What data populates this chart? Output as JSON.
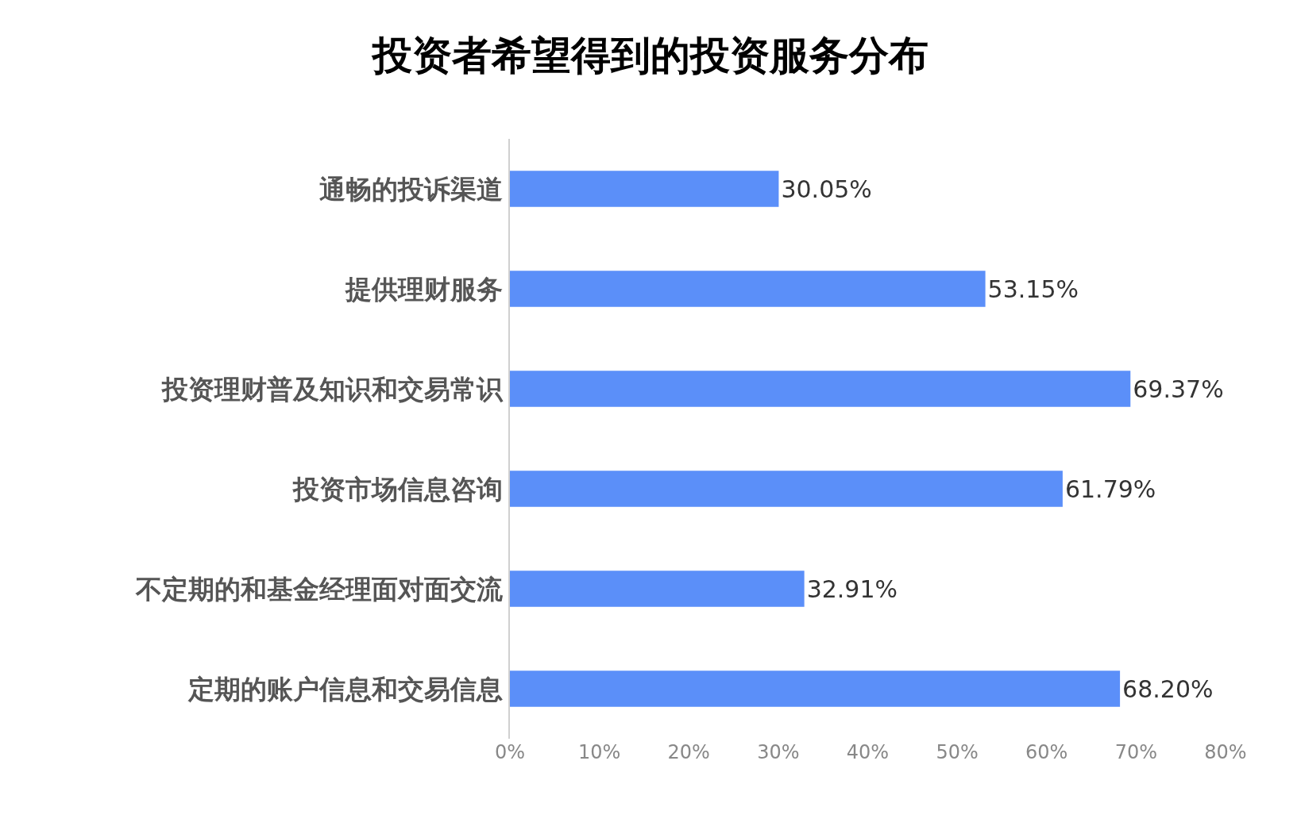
{
  "chart_data": {
    "type": "bar",
    "orientation": "horizontal",
    "title": "投资者希望得到的投资服务分布",
    "categories": [
      "通畅的投诉渠道",
      "提供理财服务",
      "投资理财普及知识和交易常识",
      "投资市场信息咨询",
      "不定期的和基金经理面对面交流",
      "定期的账户信息和交易信息"
    ],
    "values": [
      30.05,
      53.15,
      69.37,
      61.79,
      32.91,
      68.2
    ],
    "value_labels": [
      "30.05%",
      "53.15%",
      "69.37%",
      "61.79%",
      "32.91%",
      "68.20%"
    ],
    "color": "#5b8ff9",
    "xlim": [
      0,
      80
    ],
    "xticks": [
      {
        "value": 0,
        "label": "0%"
      },
      {
        "value": 10,
        "label": "10%"
      },
      {
        "value": 20,
        "label": "20%"
      },
      {
        "value": 30,
        "label": "30%"
      },
      {
        "value": 40,
        "label": "40%"
      },
      {
        "value": 50,
        "label": "50%"
      },
      {
        "value": 60,
        "label": "60%"
      },
      {
        "value": 70,
        "label": "70%"
      },
      {
        "value": 80,
        "label": "80%"
      }
    ],
    "grid": false,
    "legend": false
  }
}
